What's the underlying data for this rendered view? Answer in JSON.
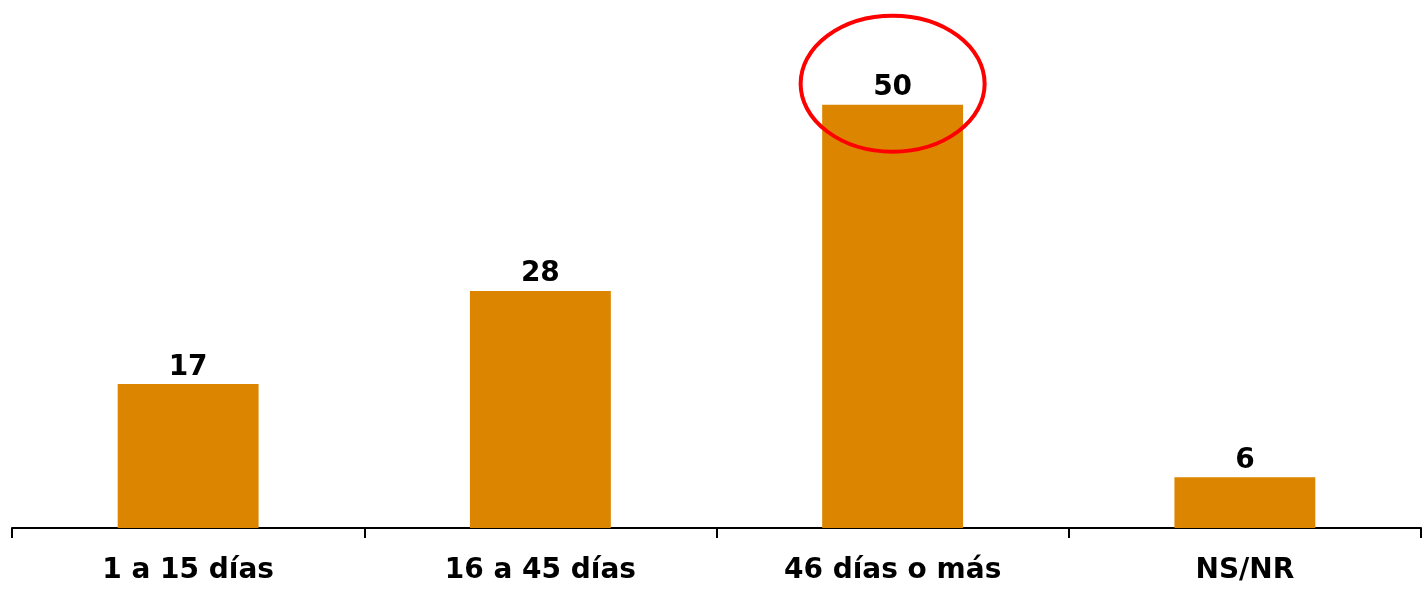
{
  "chart_data": {
    "type": "bar",
    "categories": [
      "1 a 15 días",
      "16 a 45 días",
      "46 días o más",
      "NS/NR"
    ],
    "values": [
      17,
      28,
      50,
      6
    ],
    "color": "#dc8500",
    "data_labels": true
  }
}
